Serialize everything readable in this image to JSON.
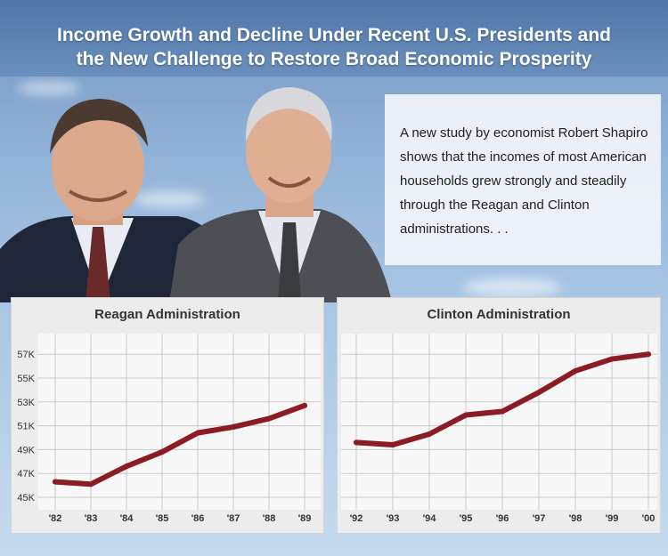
{
  "header": {
    "title_line1": "Income Growth and Decline Under Recent U.S. Presidents and",
    "title_line2": "the New Challenge to Restore Broad Economic Prosperity"
  },
  "quote": {
    "text": "A new study by economist Robert Shapiro shows that the incomes of most American households grew strongly and steadily through the Reagan and Clinton administrations. . ."
  },
  "colors": {
    "line": "#8b1c24",
    "header": "#5a80b0",
    "panel": "#ececec"
  },
  "chart_data": [
    {
      "type": "line",
      "title": "Reagan Administration",
      "x": [
        "'82",
        "'83",
        "'84",
        "'85",
        "'86",
        "'87",
        "'88",
        "'89"
      ],
      "series": [
        {
          "values": [
            46.3,
            46.1,
            47.6,
            48.8,
            50.4,
            50.9,
            51.6,
            52.7
          ]
        }
      ],
      "yticks": [
        "45K",
        "47K",
        "49K",
        "51K",
        "53K",
        "55K",
        "57K"
      ],
      "ylim": [
        45,
        57
      ],
      "grid": true
    },
    {
      "type": "line",
      "title": "Clinton Administration",
      "x": [
        "'92",
        "'93",
        "'94",
        "'95",
        "'96",
        "'97",
        "'98",
        "'99",
        "'00"
      ],
      "series": [
        {
          "values": [
            49.6,
            49.4,
            50.3,
            51.9,
            52.2,
            53.8,
            55.6,
            56.6,
            57.0
          ]
        }
      ],
      "yticks": [],
      "ylim": [
        45,
        57
      ],
      "grid": true
    }
  ]
}
